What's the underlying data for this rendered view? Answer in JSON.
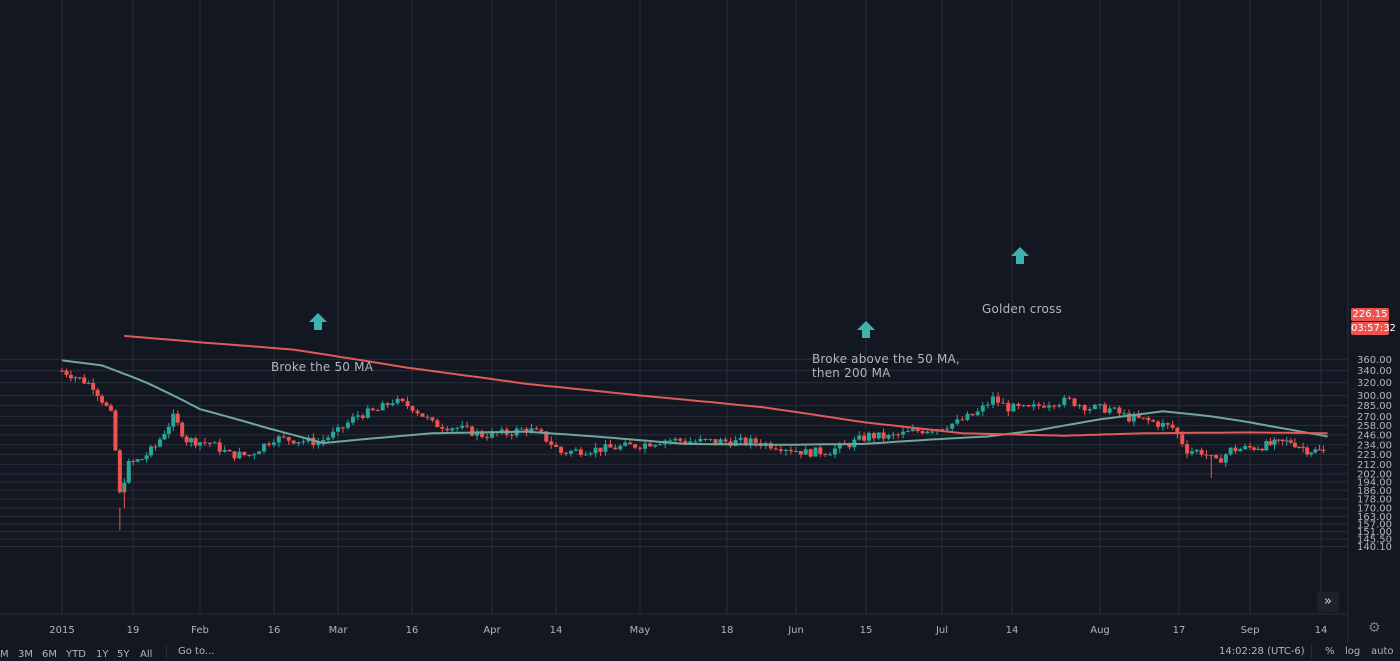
{
  "chart_data": {
    "type": "candlestick",
    "y_axis_ticks": [
      "360.00",
      "340.00",
      "320.00",
      "300.00",
      "285.00",
      "270.00",
      "258.00",
      "246.00",
      "234.00",
      "223.00",
      "212.00",
      "202.00",
      "194.00",
      "186.00",
      "178.00",
      "170.00",
      "163.00",
      "157.00",
      "151.00",
      "145.50",
      "140.10"
    ],
    "x_axis_ticks": [
      "2015",
      "19",
      "Feb",
      "16",
      "Mar",
      "16",
      "Apr",
      "14",
      "May",
      "18",
      "Jun",
      "15",
      "Jul",
      "14",
      "Aug",
      "17",
      "Sep",
      "14"
    ],
    "y_scale": "log",
    "grid": true,
    "colors": {
      "up": "#26a69a",
      "down": "#ef5350",
      "ma50": "#6fa89b",
      "ma200": "#e05a5a",
      "background": "#131722",
      "grid": "#2a2e39"
    },
    "close_path": [
      [
        "2015-01-01",
        340
      ],
      [
        "2015-01-04",
        330
      ],
      [
        "2015-01-08",
        315
      ],
      [
        "2015-01-12",
        272
      ],
      [
        "2015-01-14",
        182
      ],
      [
        "2015-01-16",
        212
      ],
      [
        "2015-01-19",
        218
      ],
      [
        "2015-01-22",
        232
      ],
      [
        "2015-01-26",
        268
      ],
      [
        "2015-01-29",
        240
      ],
      [
        "2015-02-03",
        236
      ],
      [
        "2015-02-07",
        223
      ],
      [
        "2015-02-11",
        222
      ],
      [
        "2015-02-16",
        242
      ],
      [
        "2015-02-20",
        240
      ],
      [
        "2015-02-25",
        237
      ],
      [
        "2015-03-01",
        250
      ],
      [
        "2015-03-05",
        272
      ],
      [
        "2015-03-09",
        278
      ],
      [
        "2015-03-12",
        292
      ],
      [
        "2015-03-16",
        283
      ],
      [
        "2015-03-20",
        260
      ],
      [
        "2015-03-25",
        255
      ],
      [
        "2015-03-30",
        246
      ],
      [
        "2015-04-04",
        248
      ],
      [
        "2015-04-08",
        254
      ],
      [
        "2015-04-11",
        246
      ],
      [
        "2015-04-15",
        225
      ],
      [
        "2015-04-20",
        228
      ],
      [
        "2015-04-25",
        230
      ],
      [
        "2015-05-01",
        234
      ],
      [
        "2015-05-06",
        240
      ],
      [
        "2015-05-12",
        238
      ],
      [
        "2015-05-18",
        238
      ],
      [
        "2015-05-24",
        237
      ],
      [
        "2015-05-29",
        232
      ],
      [
        "2015-06-03",
        225
      ],
      [
        "2015-06-08",
        227
      ],
      [
        "2015-06-12",
        235
      ],
      [
        "2015-06-16",
        245
      ],
      [
        "2015-06-20",
        243
      ],
      [
        "2015-06-25",
        250
      ],
      [
        "2015-06-30",
        255
      ],
      [
        "2015-07-04",
        262
      ],
      [
        "2015-07-08",
        275
      ],
      [
        "2015-07-11",
        295
      ],
      [
        "2015-07-14",
        282
      ],
      [
        "2015-07-18",
        280
      ],
      [
        "2015-07-22",
        290
      ],
      [
        "2015-07-26",
        292
      ],
      [
        "2015-07-30",
        282
      ],
      [
        "2015-08-03",
        280
      ],
      [
        "2015-08-07",
        268
      ],
      [
        "2015-08-11",
        264
      ],
      [
        "2015-08-16",
        255
      ],
      [
        "2015-08-19",
        228
      ],
      [
        "2015-08-22",
        226
      ],
      [
        "2015-08-25",
        214
      ],
      [
        "2015-08-28",
        228
      ],
      [
        "2015-09-02",
        231
      ],
      [
        "2015-09-07",
        235
      ],
      [
        "2015-09-11",
        238
      ],
      [
        "2015-09-15",
        228
      ],
      [
        "2015-09-19",
        226
      ]
    ],
    "series": [
      {
        "values_path": [
          [
            "2015-01-01",
            358
          ],
          [
            "2015-01-10",
            349
          ],
          [
            "2015-01-20",
            320
          ],
          [
            "2015-02-01",
            280
          ],
          [
            "2015-02-15",
            254
          ],
          [
            "2015-02-26",
            236
          ],
          [
            "2015-03-05",
            240
          ],
          [
            "2015-03-20",
            248
          ],
          [
            "2015-04-08",
            250
          ],
          [
            "2015-04-22",
            244
          ],
          [
            "2015-05-10",
            235
          ],
          [
            "2015-05-30",
            234
          ],
          [
            "2015-06-15",
            235
          ],
          [
            "2015-06-28",
            240
          ],
          [
            "2015-07-10",
            244
          ],
          [
            "2015-07-20",
            252
          ],
          [
            "2015-08-01",
            266
          ],
          [
            "2015-08-14",
            277
          ],
          [
            "2015-08-24",
            270
          ],
          [
            "2015-09-05",
            258
          ],
          [
            "2015-09-20",
            244
          ]
        ]
      },
      {
        "values_path": [
          [
            "2015-01-15",
            405
          ],
          [
            "2015-02-20",
            378
          ],
          [
            "2015-03-15",
            345
          ],
          [
            "2015-04-08",
            318
          ],
          [
            "2015-05-01",
            300
          ],
          [
            "2015-05-25",
            283
          ],
          [
            "2015-06-15",
            262
          ],
          [
            "2015-07-05",
            248
          ],
          [
            "2015-07-25",
            245
          ],
          [
            "2015-08-10",
            248
          ],
          [
            "2015-09-01",
            249
          ],
          [
            "2015-09-20",
            248
          ]
        ]
      }
    ],
    "annotations": [
      {
        "text": "Broke the 50 MA",
        "date": "2015-02-25"
      },
      {
        "text": "Broke above the 50 MA,\nthen 200 MA",
        "date": "2015-06-15"
      },
      {
        "text": "Golden cross",
        "date": "2015-07-15"
      }
    ],
    "last_price": "226.15",
    "countdown": "03:57:32"
  },
  "toolbar": {
    "range_buttons": [
      "M",
      "3M",
      "6M",
      "YTD",
      "1Y",
      "5Y",
      "All"
    ],
    "goto_label": "Go to...",
    "time": "14:02:28 (UTC-6)",
    "percent": "%",
    "log": "log",
    "auto": "auto",
    "nav_icon": "double-chevron-right-icon",
    "settings_icon": "gear-icon"
  }
}
